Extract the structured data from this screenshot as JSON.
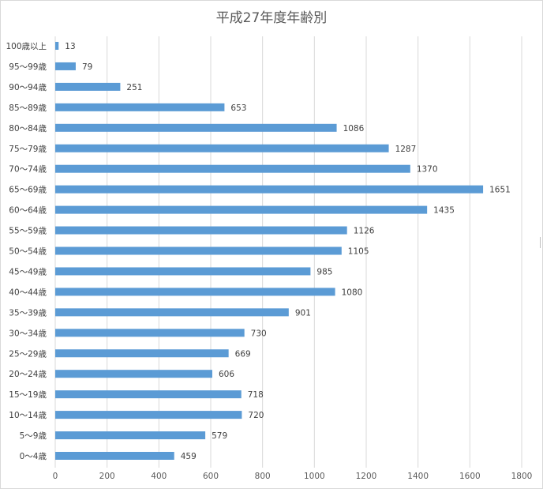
{
  "chart_data": {
    "type": "bar",
    "orientation": "horizontal",
    "title": "平成27年度年齢別",
    "categories": [
      "100歳以上",
      "95～99歳",
      "90～94歳",
      "85～89歳",
      "80～84歳",
      "75～79歳",
      "70～74歳",
      "65～69歳",
      "60～64歳",
      "55～59歳",
      "50～54歳",
      "45～49歳",
      "40～44歳",
      "35～39歳",
      "30～34歳",
      "25～29歳",
      "20～24歳",
      "15～19歳",
      "10～14歳",
      "5～9歳",
      "0～4歳"
    ],
    "values": [
      13,
      79,
      251,
      653,
      1086,
      1287,
      1370,
      1651,
      1435,
      1126,
      1105,
      985,
      1080,
      901,
      730,
      669,
      606,
      718,
      720,
      579,
      459
    ],
    "xlim": [
      0,
      1800
    ],
    "xticks": [
      0,
      200,
      400,
      600,
      800,
      1000,
      1200,
      1400,
      1600,
      1800
    ],
    "xlabel": "",
    "ylabel": "",
    "grid": "vertical",
    "legend": "none",
    "data_labels": true,
    "bar_color": "#5b9bd5",
    "grid_color": "#d9d9d9",
    "text_color": "#404040"
  }
}
